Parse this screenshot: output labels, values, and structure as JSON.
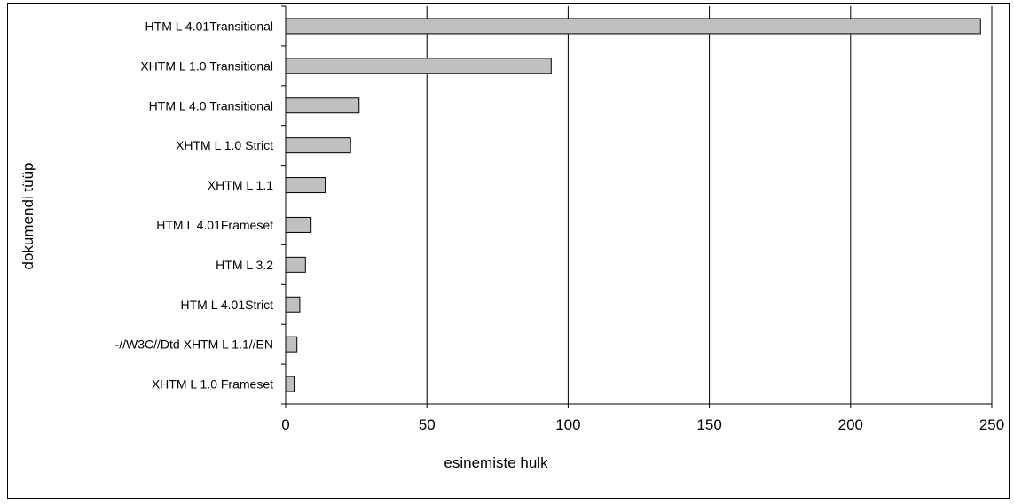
{
  "chart_data": {
    "type": "bar",
    "orientation": "horizontal",
    "categories": [
      "HTM L 4.01Transitional",
      "XHTM L 1.0 Transitional",
      "HTM L 4.0 Transitional",
      "XHTM L 1.0 Strict",
      "XHTM L 1.1",
      "HTM L 4.01Frameset",
      "HTM L 3.2",
      "HTM L 4.01Strict",
      "-//W3C//Dtd XHTM L 1.1//EN",
      "XHTM L 1.0 Frameset"
    ],
    "values": [
      246,
      94,
      26,
      23,
      14,
      9,
      7,
      5,
      4,
      3
    ],
    "xlabel": "esinemiste hulk",
    "ylabel": "dokumendi tüüp",
    "xlim": [
      0,
      250
    ],
    "xticks": [
      0,
      50,
      100,
      150,
      200,
      250
    ],
    "tick_labels": [
      "0",
      "50",
      "100",
      "150",
      "200",
      "250"
    ],
    "grid": "vertical",
    "bar_fill": "#c0c0c0",
    "bar_stroke": "#000000"
  }
}
